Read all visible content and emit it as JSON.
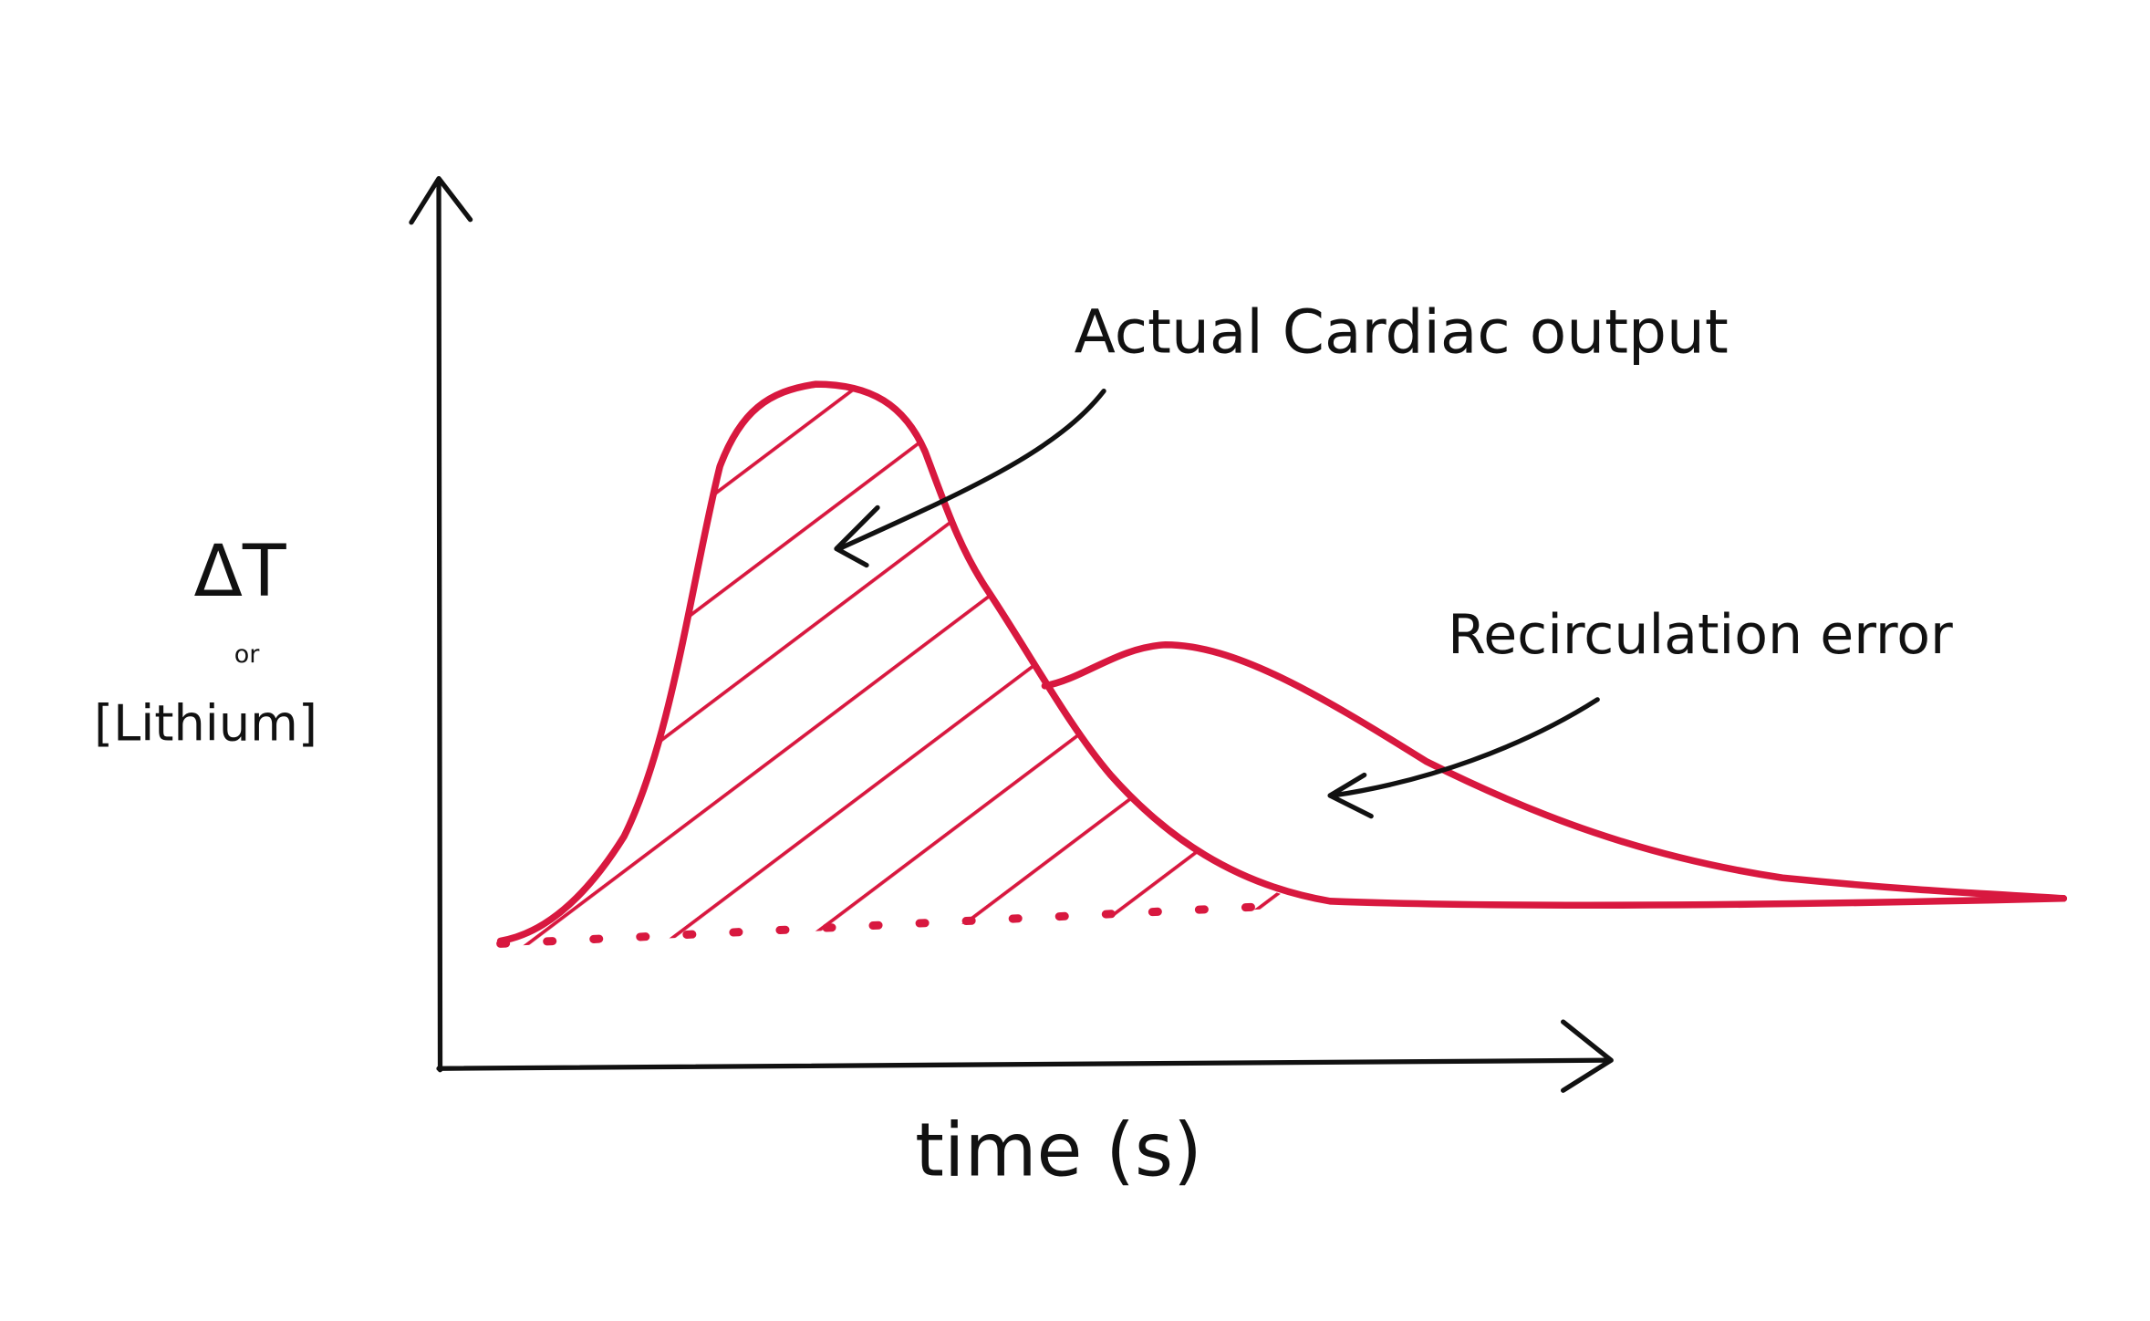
{
  "y_axis_label": {
    "symbol": "ΔT",
    "conjunction": "or",
    "substance": "[Lithium]"
  },
  "x_axis_label": "time (s)",
  "annotations": [
    "Actual Cardiac output",
    "Recirculation error"
  ]
}
